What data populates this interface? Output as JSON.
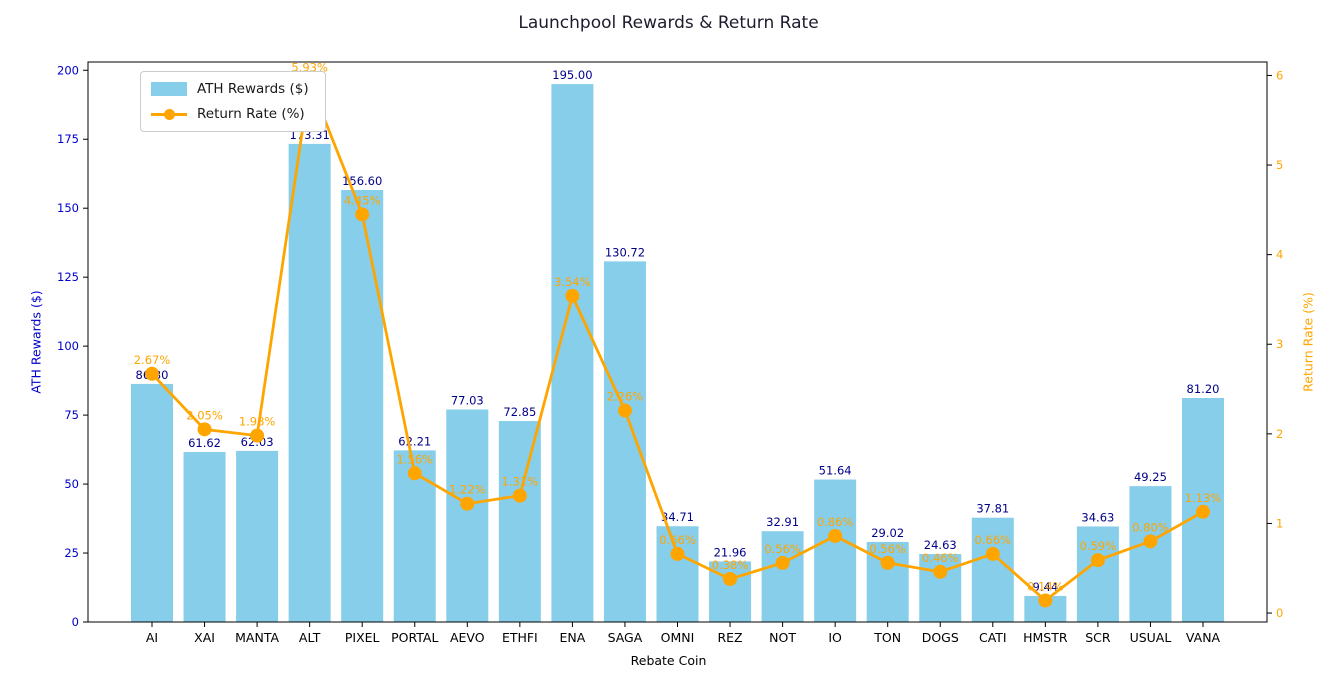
{
  "title": "Launchpool Rewards & Return Rate",
  "chart_data": {
    "type": "bar",
    "title": "Launchpool Rewards & Return Rate",
    "categories": [
      "AI",
      "XAI",
      "MANTA",
      "ALT",
      "PIXEL",
      "PORTAL",
      "AEVO",
      "ETHFI",
      "ENA",
      "SAGA",
      "OMNI",
      "REZ",
      "NOT",
      "IO",
      "TON",
      "DOGS",
      "CATI",
      "HMSTR",
      "SCR",
      "USUAL",
      "VANA"
    ],
    "series": [
      {
        "name": "ATH Rewards ($)",
        "type": "bar",
        "axis": "left",
        "color": "#87CEEB",
        "label_color": "#00008B",
        "values": [
          86.3,
          61.62,
          62.03,
          173.31,
          156.6,
          62.21,
          77.03,
          72.85,
          195.0,
          130.72,
          34.71,
          21.96,
          32.91,
          51.64,
          29.02,
          24.63,
          37.81,
          9.44,
          34.63,
          49.25,
          81.2
        ]
      },
      {
        "name": "Return Rate (%)",
        "type": "line",
        "axis": "right",
        "color": "#FFA500",
        "label_color": "#FFA500",
        "values": [
          2.67,
          2.05,
          1.98,
          5.93,
          4.45,
          1.56,
          1.22,
          1.31,
          3.54,
          2.26,
          0.66,
          0.38,
          0.56,
          0.86,
          0.56,
          0.46,
          0.66,
          0.14,
          0.59,
          0.8,
          1.13
        ]
      }
    ],
    "xlabel": "Rebate Coin",
    "ylabel_left": "ATH Rewards ($)",
    "ylabel_right": "Return Rate (%)",
    "yticks_left": [
      0,
      25,
      50,
      75,
      100,
      125,
      150,
      175,
      200
    ],
    "yticks_right": [
      0,
      1,
      2,
      3,
      4,
      5,
      6
    ],
    "ylim_left": [
      0,
      203
    ],
    "ylim_right": [
      -0.1,
      6.15
    ],
    "grid": false,
    "legend_position": "upper left",
    "colors": {
      "bar": "#87CEEB",
      "line": "#FFA500",
      "bar_value_label": "#00008B",
      "pct_label": "#FFA500",
      "left_axis_text": "#0000cc",
      "right_axis_text": "#FFA500",
      "x_axis_text": "#000000",
      "spine": "#000000"
    }
  }
}
